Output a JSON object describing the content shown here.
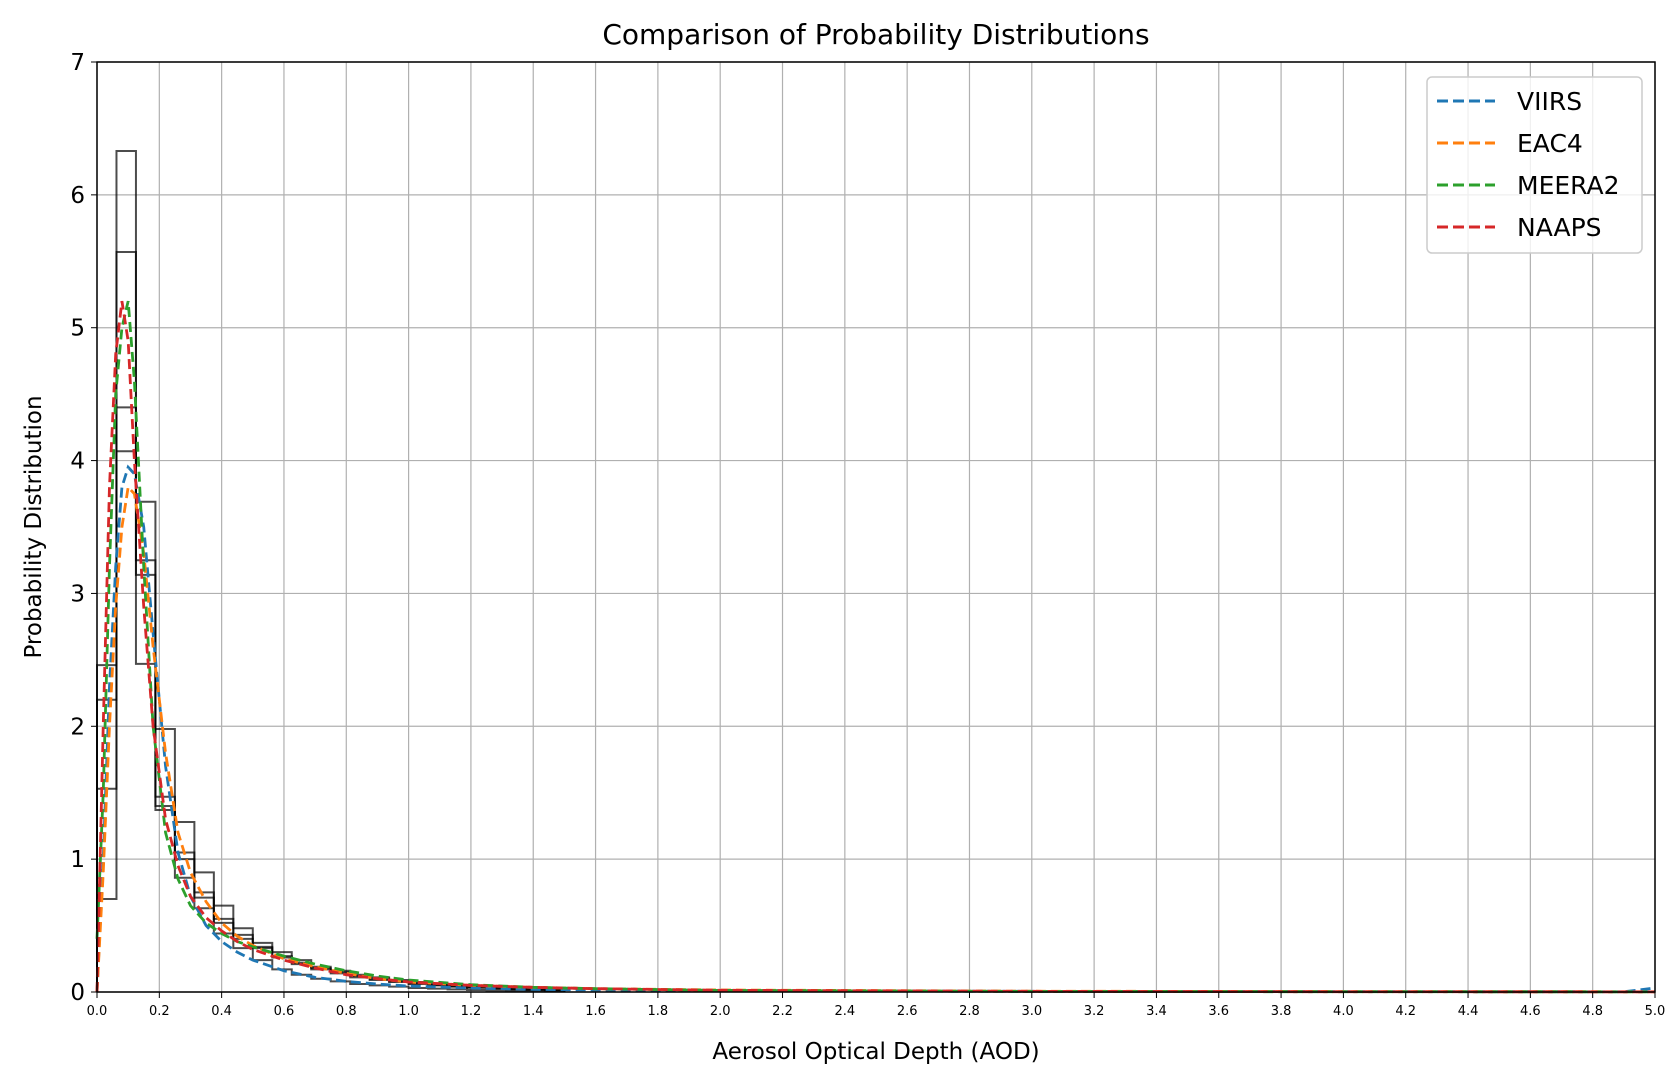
{
  "chart_data": {
    "type": "line",
    "title": "Comparison of Probability Distributions",
    "xlabel": "Aerosol Optical Depth (AOD)",
    "ylabel": "Probability Distribution",
    "xlim": [
      0,
      5
    ],
    "ylim": [
      0,
      7
    ],
    "grid": true,
    "legend_position": "top-right",
    "x_ticks": [
      "0.0",
      "0.2",
      "0.4",
      "0.6",
      "0.8",
      "1.0",
      "1.2",
      "1.4",
      "1.6",
      "1.8",
      "2.0",
      "2.2",
      "2.4",
      "2.6",
      "2.8",
      "3.0",
      "3.2",
      "3.4",
      "3.6",
      "3.8",
      "4.0",
      "4.2",
      "4.4",
      "4.6",
      "4.8",
      "5.0"
    ],
    "y_ticks": [
      "0",
      "1",
      "2",
      "3",
      "4",
      "5",
      "6",
      "7"
    ],
    "series": [
      {
        "name": "VIIRS",
        "color": "#1f77b4",
        "style": "dashed",
        "x": [
          0.0,
          0.02,
          0.04,
          0.06,
          0.08,
          0.1,
          0.12,
          0.15,
          0.18,
          0.22,
          0.26,
          0.3,
          0.35,
          0.4,
          0.45,
          0.5,
          0.6,
          0.7,
          0.8,
          0.9,
          1.0,
          1.2,
          1.4,
          1.6,
          2.0,
          3.0,
          4.0,
          4.9,
          5.0
        ],
        "y": [
          0.0,
          1.0,
          2.3,
          3.2,
          3.8,
          3.95,
          3.9,
          3.5,
          2.7,
          1.7,
          1.05,
          0.72,
          0.5,
          0.38,
          0.3,
          0.24,
          0.16,
          0.11,
          0.08,
          0.06,
          0.045,
          0.03,
          0.02,
          0.015,
          0.01,
          0.005,
          0.003,
          0.002,
          0.03
        ]
      },
      {
        "name": "EAC4",
        "color": "#ff7f0e",
        "style": "dashed",
        "x": [
          0.0,
          0.02,
          0.04,
          0.06,
          0.08,
          0.1,
          0.12,
          0.15,
          0.18,
          0.22,
          0.26,
          0.3,
          0.35,
          0.4,
          0.45,
          0.5,
          0.6,
          0.7,
          0.8,
          0.9,
          1.0,
          1.2,
          1.4,
          1.6,
          2.0,
          3.0,
          4.0,
          5.0
        ],
        "y": [
          0.0,
          0.9,
          2.0,
          2.9,
          3.5,
          3.8,
          3.75,
          3.3,
          2.6,
          1.8,
          1.2,
          0.9,
          0.68,
          0.52,
          0.42,
          0.35,
          0.25,
          0.19,
          0.14,
          0.1,
          0.075,
          0.05,
          0.035,
          0.025,
          0.015,
          0.006,
          0.003,
          0.002
        ]
      },
      {
        "name": "MEERA2",
        "color": "#2ca02c",
        "style": "dashed",
        "x": [
          0.0,
          0.02,
          0.04,
          0.06,
          0.08,
          0.1,
          0.12,
          0.15,
          0.18,
          0.22,
          0.26,
          0.3,
          0.35,
          0.4,
          0.45,
          0.5,
          0.6,
          0.7,
          0.8,
          0.9,
          1.0,
          1.2,
          1.4,
          1.6,
          2.0,
          3.0,
          4.0,
          5.0
        ],
        "y": [
          0.4,
          1.5,
          3.2,
          4.5,
          5.0,
          5.2,
          4.6,
          3.2,
          2.0,
          1.2,
          0.85,
          0.65,
          0.52,
          0.44,
          0.38,
          0.34,
          0.27,
          0.21,
          0.16,
          0.12,
          0.09,
          0.055,
          0.035,
          0.025,
          0.012,
          0.004,
          0.002,
          0.001
        ]
      },
      {
        "name": "NAAPS",
        "color": "#d62728",
        "style": "dashed",
        "x": [
          0.0,
          0.02,
          0.04,
          0.06,
          0.08,
          0.1,
          0.12,
          0.15,
          0.18,
          0.22,
          0.26,
          0.3,
          0.35,
          0.4,
          0.45,
          0.5,
          0.6,
          0.7,
          0.8,
          0.9,
          1.0,
          1.2,
          1.4,
          1.6,
          2.0,
          3.0,
          4.0,
          5.0
        ],
        "y": [
          0.0,
          2.0,
          3.8,
          4.8,
          5.2,
          4.9,
          4.0,
          2.9,
          2.0,
          1.3,
          0.95,
          0.72,
          0.56,
          0.46,
          0.38,
          0.32,
          0.24,
          0.18,
          0.13,
          0.1,
          0.075,
          0.05,
          0.035,
          0.025,
          0.013,
          0.005,
          0.002,
          0.001
        ]
      }
    ],
    "histograms": [
      {
        "edges": [
          0.0,
          0.0625,
          0.125,
          0.1875,
          0.25,
          0.3125,
          0.375,
          0.4375,
          0.5,
          0.5625,
          0.625,
          0.6875,
          0.75,
          0.8125,
          0.875,
          0.9375,
          1.0,
          1.0625,
          1.125,
          1.1875,
          1.25,
          1.3125,
          1.375,
          1.4375,
          1.5
        ],
        "values": [
          0.7,
          5.57,
          2.47,
          1.37,
          0.86,
          0.63,
          0.44,
          0.33,
          0.24,
          0.17,
          0.13,
          0.1,
          0.08,
          0.06,
          0.05,
          0.04,
          0.03,
          0.025,
          0.02,
          0.015,
          0.012,
          0.01,
          0.008,
          0.006
        ]
      },
      {
        "edges": [
          0.0,
          0.0625,
          0.125,
          0.1875,
          0.25,
          0.3125,
          0.375,
          0.4375,
          0.5,
          0.5625,
          0.625,
          0.6875,
          0.75,
          0.8125,
          0.875,
          0.9375,
          1.0,
          1.0625,
          1.125,
          1.1875,
          1.25,
          1.3125,
          1.375,
          1.4375,
          1.5
        ],
        "values": [
          2.2,
          6.33,
          3.69,
          1.47,
          1.28,
          0.9,
          0.65,
          0.48,
          0.37,
          0.3,
          0.24,
          0.19,
          0.16,
          0.13,
          0.11,
          0.09,
          0.075,
          0.06,
          0.05,
          0.04,
          0.033,
          0.027,
          0.022,
          0.018
        ]
      },
      {
        "edges": [
          0.0,
          0.0625,
          0.125,
          0.1875,
          0.25,
          0.3125,
          0.375,
          0.4375,
          0.5,
          0.5625,
          0.625,
          0.6875,
          0.75,
          0.8125,
          0.875,
          0.9375,
          1.0,
          1.0625,
          1.125,
          1.1875,
          1.25,
          1.3125,
          1.375,
          1.4375,
          1.5
        ],
        "values": [
          1.53,
          4.07,
          3.25,
          1.98,
          1.05,
          0.71,
          0.52,
          0.4,
          0.33,
          0.26,
          0.21,
          0.17,
          0.14,
          0.11,
          0.09,
          0.075,
          0.06,
          0.05,
          0.04,
          0.032,
          0.026,
          0.02,
          0.016,
          0.013
        ]
      },
      {
        "edges": [
          0.0,
          0.0625,
          0.125,
          0.1875,
          0.25,
          0.3125,
          0.375,
          0.4375,
          0.5,
          0.5625,
          0.625,
          0.6875,
          0.75,
          0.8125,
          0.875,
          0.9375,
          1.0,
          1.0625,
          1.125,
          1.1875,
          1.25,
          1.3125,
          1.375,
          1.4375,
          1.5
        ],
        "values": [
          2.46,
          4.4,
          3.14,
          1.4,
          1.0,
          0.75,
          0.55,
          0.43,
          0.34,
          0.27,
          0.22,
          0.18,
          0.15,
          0.12,
          0.1,
          0.08,
          0.065,
          0.052,
          0.042,
          0.034,
          0.027,
          0.022,
          0.018,
          0.014
        ]
      }
    ]
  }
}
